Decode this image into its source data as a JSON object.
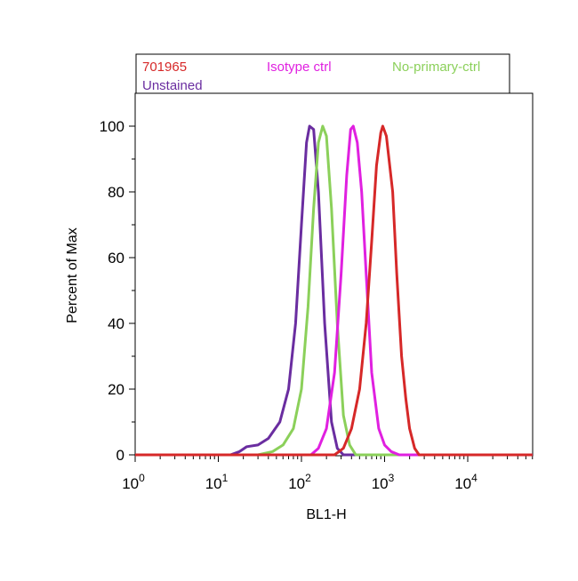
{
  "chart_data": {
    "type": "line",
    "title": "",
    "xlabel": "BL1-H",
    "ylabel": "Percent of Max",
    "x_scale": "log",
    "xlim": [
      1,
      60000
    ],
    "ylim": [
      0,
      105
    ],
    "x_ticks": [
      {
        "value": 1,
        "base": "10",
        "exp": "0"
      },
      {
        "value": 10,
        "base": "10",
        "exp": "1"
      },
      {
        "value": 100,
        "base": "10",
        "exp": "2"
      },
      {
        "value": 1000,
        "base": "10",
        "exp": "3"
      },
      {
        "value": 10000,
        "base": "10",
        "exp": "4"
      }
    ],
    "y_ticks": [
      {
        "value": 0,
        "label": "0"
      },
      {
        "value": 20,
        "label": "20"
      },
      {
        "value": 40,
        "label": "40"
      },
      {
        "value": 60,
        "label": "60"
      },
      {
        "value": 80,
        "label": "80"
      },
      {
        "value": 100,
        "label": "100"
      }
    ],
    "grid": false,
    "legend": {
      "placement": "top",
      "entries": [
        {
          "label": "701965",
          "color": "#d62828"
        },
        {
          "label": "Isotype ctrl",
          "color": "#e020e0"
        },
        {
          "label": "No-primary-ctrl",
          "color": "#8bd05a"
        },
        {
          "label": "Unstained",
          "color": "#6a2da0"
        }
      ]
    },
    "series": [
      {
        "name": "Unstained",
        "color": "#6a2da0",
        "points": [
          [
            1,
            0
          ],
          [
            14,
            0
          ],
          [
            18,
            1
          ],
          [
            22,
            2.5
          ],
          [
            30,
            3
          ],
          [
            40,
            5
          ],
          [
            55,
            10
          ],
          [
            70,
            20
          ],
          [
            85,
            40
          ],
          [
            100,
            70
          ],
          [
            115,
            95
          ],
          [
            125,
            100
          ],
          [
            140,
            99
          ],
          [
            160,
            80
          ],
          [
            190,
            40
          ],
          [
            230,
            10
          ],
          [
            270,
            2
          ],
          [
            320,
            0
          ],
          [
            60000,
            0
          ]
        ]
      },
      {
        "name": "No-primary-ctrl",
        "color": "#8bd05a",
        "points": [
          [
            1,
            0
          ],
          [
            30,
            0
          ],
          [
            45,
            1
          ],
          [
            60,
            3
          ],
          [
            80,
            8
          ],
          [
            100,
            20
          ],
          [
            120,
            45
          ],
          [
            140,
            75
          ],
          [
            160,
            95
          ],
          [
            180,
            100
          ],
          [
            200,
            97
          ],
          [
            230,
            75
          ],
          [
            270,
            40
          ],
          [
            320,
            12
          ],
          [
            380,
            3
          ],
          [
            450,
            0
          ],
          [
            60000,
            0
          ]
        ]
      },
      {
        "name": "Isotype ctrl",
        "color": "#e020e0",
        "points": [
          [
            1,
            0
          ],
          [
            130,
            0
          ],
          [
            160,
            2
          ],
          [
            200,
            8
          ],
          [
            250,
            25
          ],
          [
            300,
            55
          ],
          [
            350,
            85
          ],
          [
            390,
            99
          ],
          [
            420,
            100
          ],
          [
            470,
            95
          ],
          [
            530,
            80
          ],
          [
            600,
            55
          ],
          [
            700,
            25
          ],
          [
            850,
            8
          ],
          [
            1000,
            3
          ],
          [
            1200,
            1
          ],
          [
            1500,
            0
          ],
          [
            60000,
            0
          ]
        ]
      },
      {
        "name": "701965",
        "color": "#d62828",
        "points": [
          [
            1,
            0
          ],
          [
            250,
            0
          ],
          [
            320,
            2
          ],
          [
            400,
            8
          ],
          [
            500,
            20
          ],
          [
            600,
            40
          ],
          [
            700,
            65
          ],
          [
            800,
            88
          ],
          [
            900,
            98
          ],
          [
            950,
            100
          ],
          [
            1050,
            97
          ],
          [
            1250,
            80
          ],
          [
            1400,
            55
          ],
          [
            1600,
            30
          ],
          [
            1800,
            17
          ],
          [
            2000,
            8
          ],
          [
            2300,
            2
          ],
          [
            2600,
            0
          ],
          [
            60000,
            0
          ]
        ]
      }
    ]
  }
}
